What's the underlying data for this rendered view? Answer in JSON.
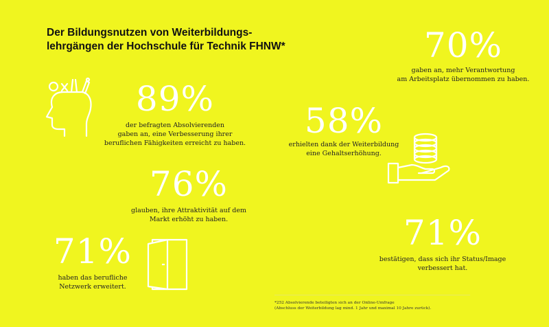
{
  "title": {
    "line1": "Der Bildungsnutzen von Weiterbildungs-",
    "line2": "lehrgängen der Hochschule für Technik FHNW*"
  },
  "stats": {
    "s89": {
      "value": "89%",
      "lines": [
        "der befragten Absolvierenden",
        "gaben an, eine Verbesserung ihrer",
        "beruflichen Fähigkeiten erreicht zu haben."
      ]
    },
    "s76": {
      "value": "76%",
      "lines": [
        "glauben, ihre Attraktivität auf dem",
        "Markt erhöht zu haben."
      ]
    },
    "s71a": {
      "value": "71%",
      "lines": [
        "haben das berufliche",
        "Netzwerk erweitert."
      ]
    },
    "s70": {
      "value": "70%",
      "lines": [
        "gaben an, mehr Verantwortung",
        "am Arbeitsplatz übernommen zu haben."
      ]
    },
    "s58": {
      "value": "58%",
      "lines": [
        "erhielten dank der Weiterbildung",
        "eine Gehaltserhöhung."
      ]
    },
    "s71b": {
      "value": "71%",
      "lines": [
        "bestätigen, dass sich ihr Status/Image",
        "verbessert hat."
      ]
    }
  },
  "footnote": {
    "line1": "*252 Absolvierende beteiligten sich an der Online-Umfrage",
    "line2": "(Abschluss der Weiterbildung lag mind. 1 Jahr und maximal 10 Jahre zurück)."
  },
  "icons": {
    "head": "head-with-tools-icon",
    "door": "open-door-icon",
    "coins": "hand-with-coins-icon"
  },
  "colors": {
    "background": "#f0f51f",
    "number": "#ffffff",
    "text": "#222222"
  }
}
